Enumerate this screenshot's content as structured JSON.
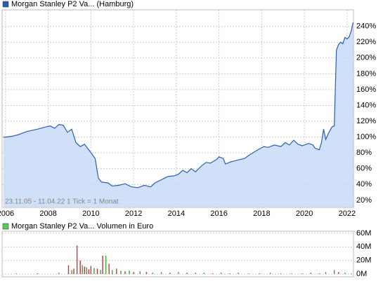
{
  "chart_data": [
    {
      "type": "line",
      "x": [
        2005.9,
        2006.0,
        2006.3,
        2006.6,
        2007.0,
        2007.5,
        2007.9,
        2008.1,
        2008.3,
        2008.5,
        2008.7,
        2008.9,
        2009.1,
        2009.3,
        2009.5,
        2009.7,
        2009.9,
        2010.2,
        2010.35,
        2010.5,
        2010.8,
        2011.0,
        2011.3,
        2011.6,
        2011.9,
        2012.2,
        2012.5,
        2012.8,
        2013.0,
        2013.3,
        2013.6,
        2013.9,
        2014.1,
        2014.3,
        2014.5,
        2014.7,
        2014.9,
        2015.2,
        2015.4,
        2015.6,
        2015.9,
        2016.0,
        2016.2,
        2016.3,
        2016.6,
        2016.9,
        2017.2,
        2017.4,
        2017.7,
        2017.9,
        2018.1,
        2018.3,
        2018.6,
        2018.9,
        2019.1,
        2019.3,
        2019.5,
        2019.7,
        2019.9,
        2020.2,
        2020.4,
        2020.5,
        2020.7,
        2020.8,
        2020.9,
        2021.0,
        2021.15,
        2021.3,
        2021.4,
        2021.5,
        2021.6,
        2021.7,
        2021.8,
        2021.9,
        2022.0,
        2022.1,
        2022.2,
        2022.28
      ],
      "series": [
        {
          "name": "Morgan Stanley P2 Va... (Hamburg)",
          "color": "#2a5fb0",
          "values": [
            100,
            100,
            101,
            103,
            107,
            110,
            113,
            114,
            111,
            116,
            115,
            106,
            110,
            93,
            88,
            91,
            84,
            73,
            48,
            43,
            42,
            38,
            39,
            41,
            37,
            36,
            39,
            37,
            42,
            46,
            50,
            51,
            53,
            58,
            55,
            60,
            56,
            64,
            68,
            67,
            72,
            75,
            73,
            66,
            69,
            71,
            73,
            77,
            82,
            85,
            88,
            87,
            90,
            88,
            93,
            90,
            96,
            91,
            89,
            92,
            90,
            86,
            84,
            93,
            110,
            97,
            106,
            113,
            114,
            210,
            217,
            220,
            218,
            226,
            224,
            227,
            235,
            245
          ]
        }
      ],
      "fill_color": "#c8daf7",
      "annotation": "23.11.05 - 11.04.22   1 Tick = 1 Monat",
      "xlim": [
        2005.84,
        2022.3
      ],
      "xticks": [
        2006,
        2008,
        2010,
        2012,
        2014,
        2016,
        2018,
        2020,
        2022
      ],
      "ylim": [
        11,
        261
      ],
      "yticks": [
        {
          "value": 20,
          "label": "20%"
        },
        {
          "value": 40,
          "label": "40%"
        },
        {
          "value": 60,
          "label": "60%"
        },
        {
          "value": 80,
          "label": "80%"
        },
        {
          "value": 100,
          "label": "100%"
        },
        {
          "value": 120,
          "label": "120%"
        },
        {
          "value": 140,
          "label": "140%"
        },
        {
          "value": 160,
          "label": "160%"
        },
        {
          "value": 180,
          "label": "180%"
        },
        {
          "value": 200,
          "label": "200%"
        },
        {
          "value": 220,
          "label": "220%"
        },
        {
          "value": 240,
          "label": "240%"
        }
      ],
      "grid": true
    },
    {
      "type": "bar",
      "x": [
        2006.5,
        2007.5,
        2008.5,
        2008.95,
        2009.1,
        2009.2,
        2009.35,
        2009.5,
        2009.6,
        2009.7,
        2009.8,
        2009.9,
        2010.0,
        2010.15,
        2010.3,
        2010.45,
        2010.55,
        2010.7,
        2010.85,
        2011.0,
        2011.2,
        2011.4,
        2011.6,
        2011.8,
        2012.0,
        2012.3,
        2012.6,
        2012.9,
        2013.3,
        2013.7,
        2014.1,
        2014.5,
        2014.9,
        2015.3,
        2015.7,
        2016.1,
        2016.5,
        2016.9,
        2017.4,
        2017.9,
        2018.4,
        2018.9,
        2019.4,
        2019.9,
        2020.3,
        2020.7,
        2021.0,
        2021.4,
        2021.6,
        2021.9,
        2022.2
      ],
      "series": [
        {
          "name": "Morgan Stanley P2 Va... Volumen in Euro",
          "values": [
            1,
            1,
            2,
            13,
            6,
            8,
            42,
            20,
            13,
            11,
            10,
            7,
            12,
            9,
            8,
            6,
            27,
            27,
            15,
            6,
            8,
            5,
            4,
            5,
            3,
            4,
            3,
            2,
            3,
            2,
            3,
            2,
            2,
            2,
            1,
            2,
            1,
            2,
            1,
            1,
            2,
            1,
            1,
            1,
            2,
            1,
            3,
            6,
            3,
            2,
            1
          ],
          "colors": [
            "#3a3",
            "#c33",
            "#3a3",
            "#c33",
            "#3a3",
            "#c33",
            "#c33",
            "#c33",
            "#3a3",
            "#c33",
            "#3a3",
            "#c33",
            "#c33",
            "#3a3",
            "#c33",
            "#3a3",
            "#c33",
            "#3a3",
            "#c33",
            "#3a3",
            "#c33",
            "#3a3",
            "#c33",
            "#3a3",
            "#c33",
            "#3a3",
            "#c33",
            "#3a3",
            "#3a3",
            "#c33",
            "#3a3",
            "#c33",
            "#3a3",
            "#3a3",
            "#c33",
            "#3a3",
            "#c33",
            "#3a3",
            "#3a3",
            "#c33",
            "#3a3",
            "#c33",
            "#3a3",
            "#c33",
            "#3a3",
            "#c33",
            "#3a3",
            "#3a3",
            "#c33",
            "#3a3",
            "#3a3"
          ]
        }
      ],
      "legend_color": "#5c5",
      "xlim": [
        2005.84,
        2022.3
      ],
      "ylim": [
        -4,
        63
      ],
      "yticks": [
        {
          "value": 0,
          "label": "0M"
        },
        {
          "value": 20,
          "label": "20M"
        },
        {
          "value": 40,
          "label": "40M"
        },
        {
          "value": 60,
          "label": "60M"
        }
      ],
      "grid": true
    }
  ]
}
